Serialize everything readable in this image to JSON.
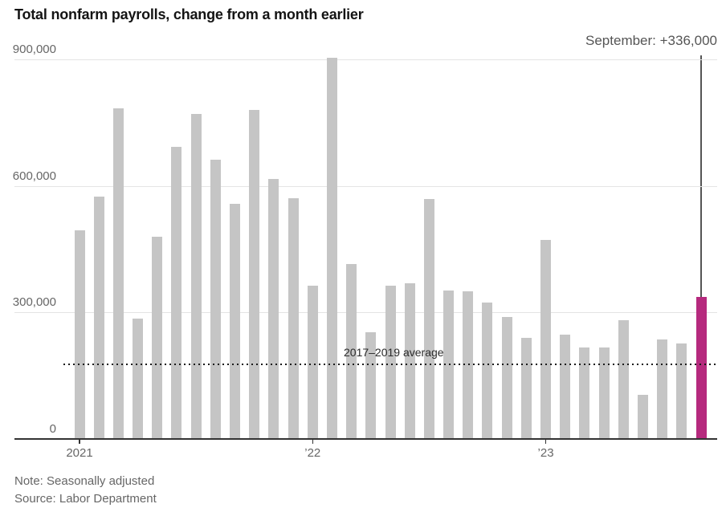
{
  "colors": {
    "bar": "#c5c5c5",
    "highlight": "#b62a7e",
    "gridline": "#e4e4e4",
    "axis": "#333333",
    "text_dark": "#141414",
    "text_gray": "#666666",
    "annotation": "#555555"
  },
  "notes": {
    "note": "Note: Seasonally adjusted",
    "source": "Source: Labor Department"
  },
  "chart_data": {
    "type": "bar",
    "title": "Total nonfarm payrolls, change from a month earlier",
    "categories": [
      "Jan 2021",
      "Feb 2021",
      "Mar 2021",
      "Apr 2021",
      "May 2021",
      "Jun 2021",
      "Jul 2021",
      "Aug 2021",
      "Sep 2021",
      "Oct 2021",
      "Nov 2021",
      "Dec 2021",
      "Jan 2022",
      "Feb 2022",
      "Mar 2022",
      "Apr 2022",
      "May 2022",
      "Jun 2022",
      "Jul 2022",
      "Aug 2022",
      "Sep 2022",
      "Oct 2022",
      "Nov 2022",
      "Dec 2022",
      "Jan 2023",
      "Feb 2023",
      "Mar 2023",
      "Apr 2023",
      "May 2023",
      "Jun 2023",
      "Jul 2023",
      "Aug 2023",
      "Sep 2023"
    ],
    "values": [
      494000,
      574000,
      784000,
      285000,
      480000,
      692000,
      770000,
      663000,
      557000,
      781000,
      616000,
      570000,
      364000,
      904000,
      414000,
      254000,
      364000,
      370000,
      568000,
      352000,
      350000,
      324000,
      290000,
      239000,
      472000,
      248000,
      217000,
      217000,
      281000,
      105000,
      236000,
      227000,
      336000
    ],
    "highlight": {
      "index": 32,
      "annotation": "September: +336,000"
    },
    "reference_line": {
      "value": 177000,
      "label": "2017–2019 average",
      "style": "dotted"
    },
    "ylim": [
      0,
      900000
    ],
    "yticks": [
      {
        "value": 0,
        "label": "0"
      },
      {
        "value": 300000,
        "label": "300,000"
      },
      {
        "value": 600000,
        "label": "600,000"
      },
      {
        "value": 900000,
        "label": "900,000"
      }
    ],
    "xticks": [
      {
        "index": 0,
        "label": "2021"
      },
      {
        "index": 12,
        "label": "’22"
      },
      {
        "index": 24,
        "label": "’23"
      }
    ],
    "grid": true,
    "legend": false
  }
}
